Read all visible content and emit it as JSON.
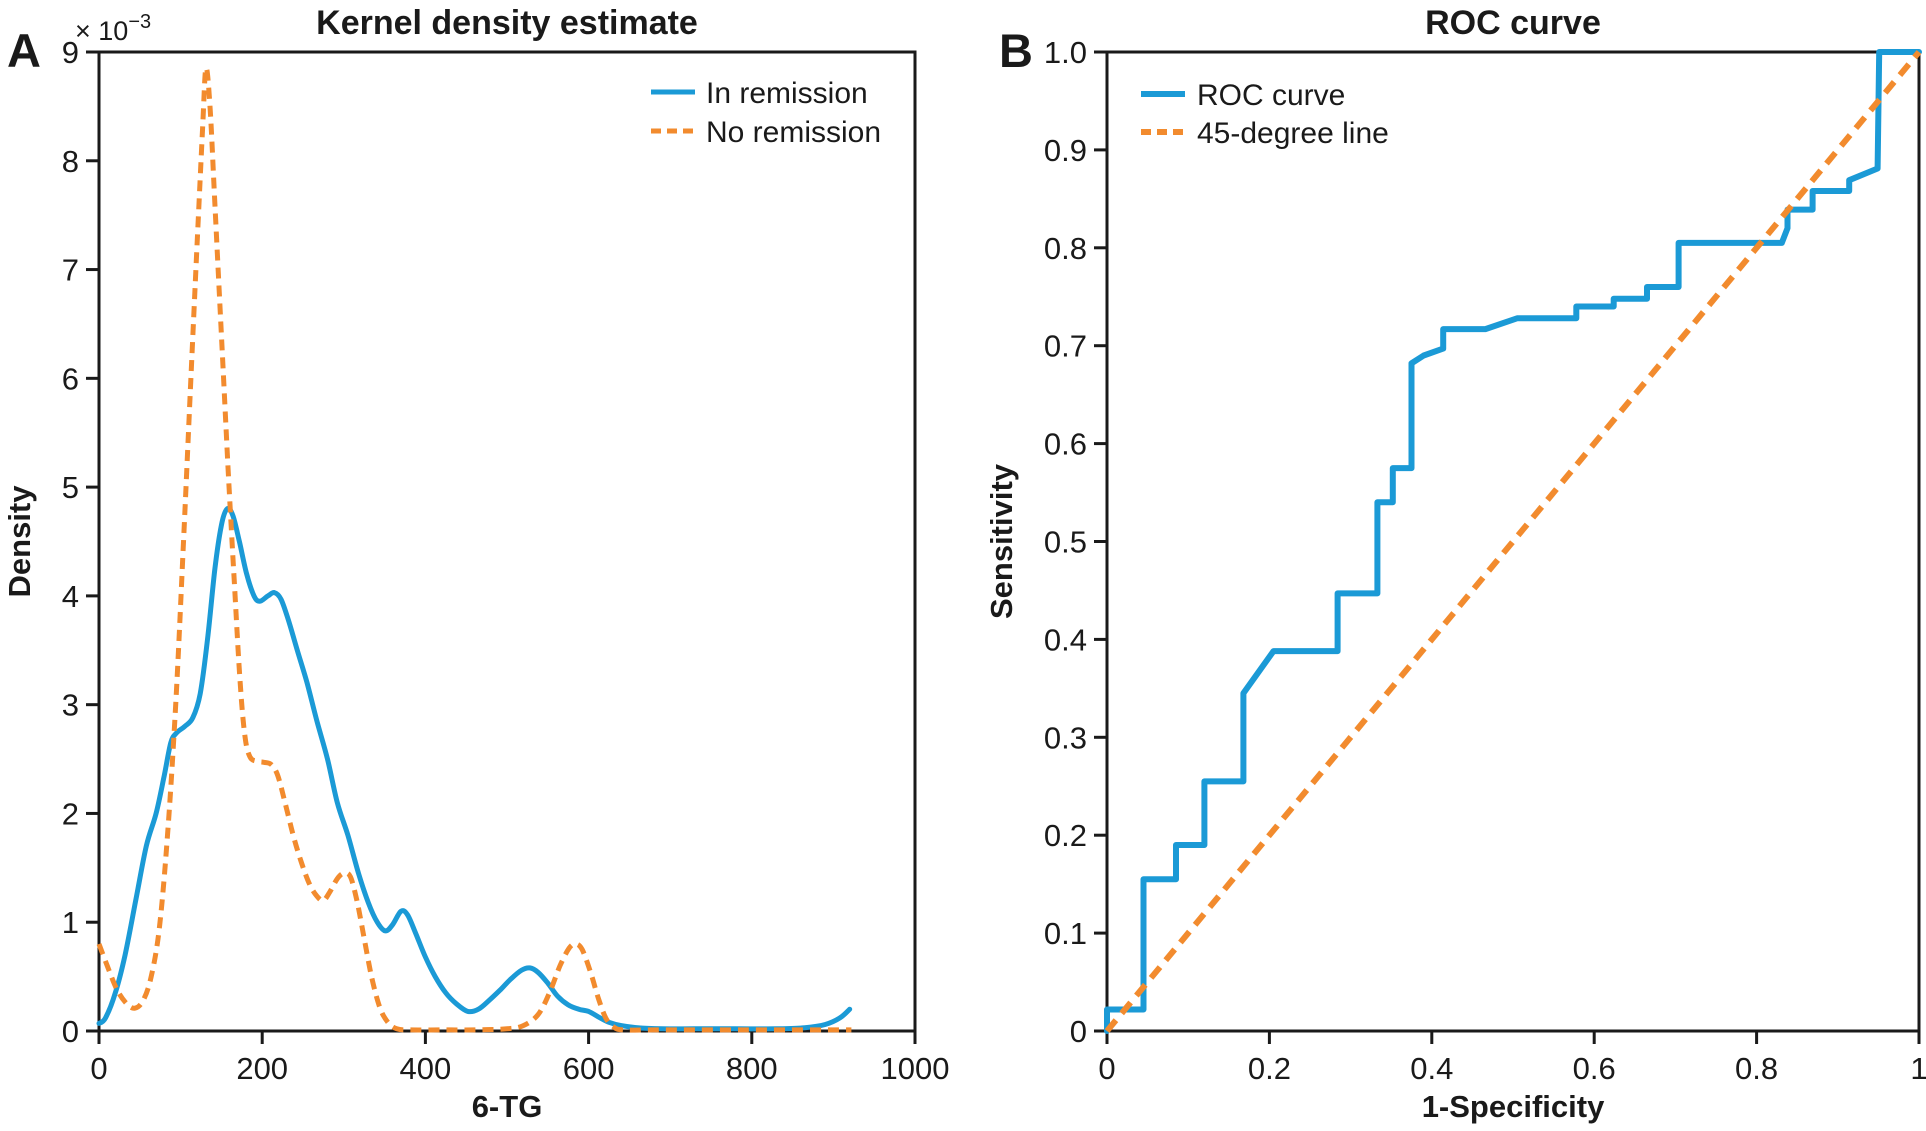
{
  "figure": {
    "panels": [
      {
        "label": "A"
      },
      {
        "label": "B"
      }
    ],
    "colors": {
      "blue": "#1b9ad6",
      "orange": "#f28b2e",
      "axis": "#1a1a1a",
      "text": "#1a1a1a",
      "background": "#ffffff"
    }
  },
  "chart_data": [
    {
      "type": "line",
      "panel": "A",
      "title": "Kernel density estimate",
      "xlabel": "6-TG",
      "ylabel": "Density",
      "y_scale_label": {
        "base": "× 10",
        "exponent": "−3"
      },
      "xlim": [
        0,
        1000
      ],
      "ylim": [
        0,
        9
      ],
      "grid": false,
      "xticks": [
        0,
        200,
        400,
        600,
        800,
        1000
      ],
      "xtick_labels": [
        "0",
        "200",
        "400",
        "600",
        "800",
        "1000"
      ],
      "yticks": [
        0,
        1,
        2,
        3,
        4,
        5,
        6,
        7,
        8,
        9
      ],
      "ytick_labels": [
        "0",
        "1",
        "2",
        "3",
        "4",
        "5",
        "6",
        "7",
        "8",
        "9"
      ],
      "legend": {
        "position": "top-right",
        "entries": [
          {
            "label": "In remission",
            "style": "solid",
            "color_key": "blue"
          },
          {
            "label": "No remission",
            "style": "dashed",
            "color_key": "orange"
          }
        ]
      },
      "series": [
        {
          "name": "In remission",
          "style": "solid",
          "color_key": "blue",
          "smooth": true,
          "points": [
            [
              0,
              0.07
            ],
            [
              8,
              0.12
            ],
            [
              20,
              0.35
            ],
            [
              32,
              0.7
            ],
            [
              45,
              1.2
            ],
            [
              58,
              1.7
            ],
            [
              70,
              2.0
            ],
            [
              80,
              2.35
            ],
            [
              88,
              2.65
            ],
            [
              95,
              2.74
            ],
            [
              105,
              2.8
            ],
            [
              115,
              2.88
            ],
            [
              124,
              3.1
            ],
            [
              133,
              3.6
            ],
            [
              142,
              4.25
            ],
            [
              150,
              4.65
            ],
            [
              157,
              4.8
            ],
            [
              164,
              4.74
            ],
            [
              172,
              4.5
            ],
            [
              181,
              4.2
            ],
            [
              190,
              4.0
            ],
            [
              197,
              3.95
            ],
            [
              207,
              4.0
            ],
            [
              215,
              4.03
            ],
            [
              223,
              3.97
            ],
            [
              232,
              3.78
            ],
            [
              243,
              3.5
            ],
            [
              255,
              3.2
            ],
            [
              267,
              2.85
            ],
            [
              280,
              2.5
            ],
            [
              292,
              2.1
            ],
            [
              305,
              1.8
            ],
            [
              318,
              1.45
            ],
            [
              330,
              1.18
            ],
            [
              341,
              1.0
            ],
            [
              351,
              0.92
            ],
            [
              360,
              0.98
            ],
            [
              370,
              1.1
            ],
            [
              378,
              1.07
            ],
            [
              388,
              0.9
            ],
            [
              400,
              0.68
            ],
            [
              412,
              0.5
            ],
            [
              425,
              0.35
            ],
            [
              438,
              0.25
            ],
            [
              452,
              0.18
            ],
            [
              465,
              0.2
            ],
            [
              478,
              0.28
            ],
            [
              492,
              0.38
            ],
            [
              505,
              0.48
            ],
            [
              518,
              0.56
            ],
            [
              528,
              0.58
            ],
            [
              538,
              0.54
            ],
            [
              550,
              0.44
            ],
            [
              562,
              0.32
            ],
            [
              575,
              0.24
            ],
            [
              588,
              0.2
            ],
            [
              600,
              0.18
            ],
            [
              612,
              0.13
            ],
            [
              625,
              0.08
            ],
            [
              640,
              0.05
            ],
            [
              660,
              0.03
            ],
            [
              690,
              0.02
            ],
            [
              730,
              0.02
            ],
            [
              780,
              0.02
            ],
            [
              830,
              0.02
            ],
            [
              865,
              0.03
            ],
            [
              890,
              0.06
            ],
            [
              908,
              0.12
            ],
            [
              920,
              0.2
            ]
          ]
        },
        {
          "name": "No remission",
          "style": "dashed",
          "color_key": "orange",
          "smooth": true,
          "points": [
            [
              0,
              0.8
            ],
            [
              10,
              0.6
            ],
            [
              22,
              0.38
            ],
            [
              34,
              0.25
            ],
            [
              44,
              0.21
            ],
            [
              54,
              0.28
            ],
            [
              64,
              0.5
            ],
            [
              74,
              0.95
            ],
            [
              84,
              1.8
            ],
            [
              94,
              3.0
            ],
            [
              103,
              4.4
            ],
            [
              112,
              5.9
            ],
            [
              120,
              7.2
            ],
            [
              127,
              8.3
            ],
            [
              131,
              8.85
            ],
            [
              136,
              8.5
            ],
            [
              142,
              7.6
            ],
            [
              150,
              6.4
            ],
            [
              158,
              5.2
            ],
            [
              166,
              4.1
            ],
            [
              173,
              3.2
            ],
            [
              179,
              2.7
            ],
            [
              185,
              2.52
            ],
            [
              193,
              2.48
            ],
            [
              202,
              2.47
            ],
            [
              211,
              2.45
            ],
            [
              219,
              2.35
            ],
            [
              228,
              2.1
            ],
            [
              238,
              1.8
            ],
            [
              248,
              1.55
            ],
            [
              258,
              1.35
            ],
            [
              267,
              1.24
            ],
            [
              275,
              1.2
            ],
            [
              283,
              1.28
            ],
            [
              292,
              1.4
            ],
            [
              300,
              1.45
            ],
            [
              308,
              1.42
            ],
            [
              316,
              1.2
            ],
            [
              325,
              0.85
            ],
            [
              334,
              0.5
            ],
            [
              344,
              0.22
            ],
            [
              354,
              0.08
            ],
            [
              365,
              0.02
            ],
            [
              380,
              0.01
            ],
            [
              420,
              0.01
            ],
            [
              460,
              0.01
            ],
            [
              500,
              0.02
            ],
            [
              520,
              0.05
            ],
            [
              538,
              0.15
            ],
            [
              552,
              0.35
            ],
            [
              565,
              0.6
            ],
            [
              576,
              0.76
            ],
            [
              584,
              0.8
            ],
            [
              592,
              0.75
            ],
            [
              602,
              0.55
            ],
            [
              612,
              0.3
            ],
            [
              621,
              0.12
            ],
            [
              630,
              0.04
            ],
            [
              642,
              0.01
            ],
            [
              680,
              0.01
            ],
            [
              730,
              0.01
            ],
            [
              790,
              0.01
            ],
            [
              850,
              0.01
            ],
            [
              900,
              0.01
            ],
            [
              922,
              0.01
            ]
          ]
        }
      ]
    },
    {
      "type": "line",
      "panel": "B",
      "title": "ROC curve",
      "xlabel": "1-Specificity",
      "ylabel": "Sensitivity",
      "xlim": [
        0,
        1
      ],
      "ylim": [
        0,
        1
      ],
      "grid": false,
      "xticks": [
        0,
        0.2,
        0.4,
        0.6,
        0.8,
        1
      ],
      "xtick_labels": [
        "0",
        "0.2",
        "0.4",
        "0.6",
        "0.8",
        "1"
      ],
      "yticks": [
        0,
        0.1,
        0.2,
        0.3,
        0.4,
        0.5,
        0.6,
        0.7,
        0.8,
        0.9,
        1.0
      ],
      "ytick_labels": [
        "0",
        "0.1",
        "0.2",
        "0.3",
        "0.4",
        "0.5",
        "0.6",
        "0.7",
        "0.8",
        "0.9",
        "1.0"
      ],
      "legend": {
        "position": "top-left",
        "entries": [
          {
            "label": "ROC curve",
            "style": "solid",
            "color_key": "blue"
          },
          {
            "label": "45-degree line",
            "style": "dashed",
            "color_key": "orange"
          }
        ]
      },
      "series": [
        {
          "name": "ROC curve",
          "style": "solid",
          "color_key": "blue",
          "smooth": false,
          "points": [
            [
              0,
              0
            ],
            [
              0,
              0.022
            ],
            [
              0.045,
              0.022
            ],
            [
              0.045,
              0.155
            ],
            [
              0.085,
              0.155
            ],
            [
              0.085,
              0.19
            ],
            [
              0.12,
              0.19
            ],
            [
              0.12,
              0.255
            ],
            [
              0.168,
              0.255
            ],
            [
              0.168,
              0.345
            ],
            [
              0.205,
              0.388
            ],
            [
              0.284,
              0.388
            ],
            [
              0.284,
              0.447
            ],
            [
              0.333,
              0.447
            ],
            [
              0.333,
              0.54
            ],
            [
              0.352,
              0.54
            ],
            [
              0.352,
              0.575
            ],
            [
              0.375,
              0.575
            ],
            [
              0.375,
              0.682
            ],
            [
              0.39,
              0.69
            ],
            [
              0.414,
              0.697
            ],
            [
              0.414,
              0.717
            ],
            [
              0.466,
              0.717
            ],
            [
              0.505,
              0.728
            ],
            [
              0.578,
              0.728
            ],
            [
              0.578,
              0.74
            ],
            [
              0.624,
              0.74
            ],
            [
              0.624,
              0.748
            ],
            [
              0.665,
              0.748
            ],
            [
              0.665,
              0.76
            ],
            [
              0.704,
              0.76
            ],
            [
              0.704,
              0.805
            ],
            [
              0.831,
              0.805
            ],
            [
              0.838,
              0.82
            ],
            [
              0.838,
              0.839
            ],
            [
              0.869,
              0.839
            ],
            [
              0.869,
              0.858
            ],
            [
              0.914,
              0.858
            ],
            [
              0.914,
              0.869
            ],
            [
              0.949,
              0.881
            ],
            [
              0.951,
              1.0
            ],
            [
              1,
              1
            ]
          ]
        },
        {
          "name": "45-degree line",
          "style": "dashed",
          "color_key": "orange",
          "smooth": false,
          "points": [
            [
              0,
              0
            ],
            [
              1,
              1
            ]
          ]
        }
      ]
    }
  ]
}
